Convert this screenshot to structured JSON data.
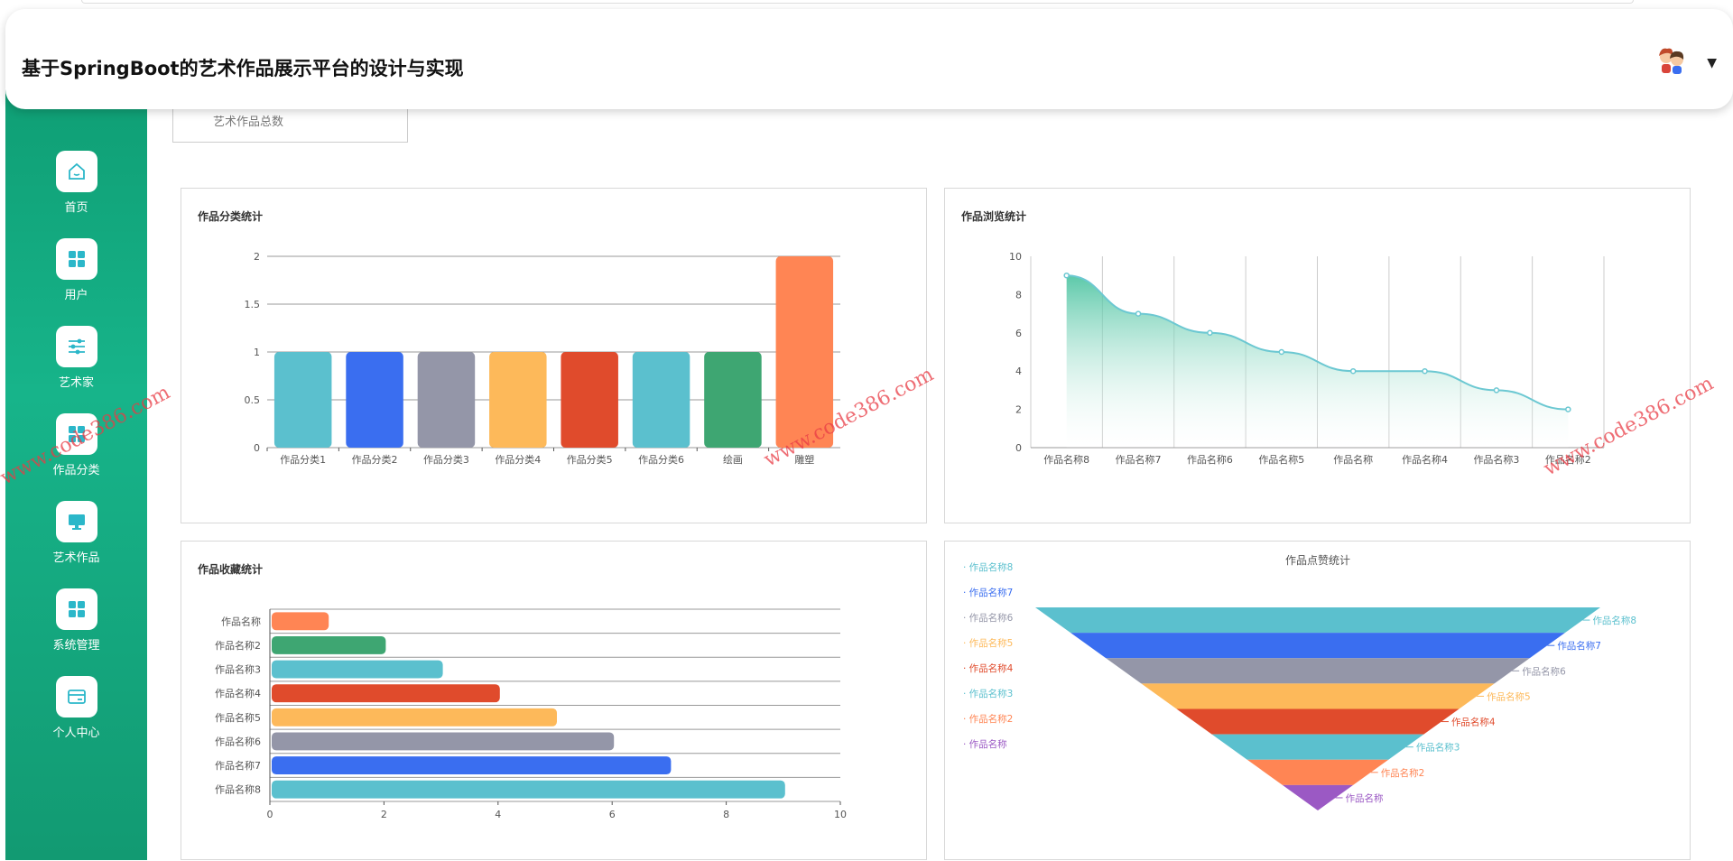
{
  "header": {
    "title": "基于SpringBoot的艺术作品展示平台的设计与实现",
    "avatar_icon": "user-avatar",
    "menu_icon": "caret-down-icon"
  },
  "sidebar": {
    "items": [
      {
        "label": "首页",
        "icon": "home-icon"
      },
      {
        "label": "用户",
        "icon": "grid-icon"
      },
      {
        "label": "艺术家",
        "icon": "sliders-icon"
      },
      {
        "label": "作品分类",
        "icon": "grid-icon"
      },
      {
        "label": "艺术作品",
        "icon": "monitor-icon"
      },
      {
        "label": "系统管理",
        "icon": "grid-icon"
      },
      {
        "label": "个人中心",
        "icon": "card-icon"
      }
    ]
  },
  "summary": {
    "label": "艺术作品总数"
  },
  "watermark": "www.code386.com",
  "charts": {
    "category": {
      "title": "作品分类统计"
    },
    "browse": {
      "title": "作品浏览统计"
    },
    "collect": {
      "title": "作品收藏统计"
    },
    "like": {
      "title": "作品点赞统计"
    }
  },
  "chart_data": [
    {
      "type": "bar",
      "title": "作品分类统计",
      "categories": [
        "作品分类1",
        "作品分类2",
        "作品分类3",
        "作品分类4",
        "作品分类5",
        "作品分类6",
        "绘画",
        "雕塑"
      ],
      "values": [
        1,
        1,
        1,
        1,
        1,
        1,
        1,
        2
      ],
      "ylim": [
        0,
        2
      ],
      "yticks": [
        "0",
        "0.5",
        "1",
        "1.5",
        "2"
      ],
      "colors": [
        "#5bc0ce",
        "#3a6ef0",
        "#9496a8",
        "#fdb95a",
        "#e04b2c",
        "#5bc0ce",
        "#3ea672",
        "#ff8554"
      ]
    },
    {
      "type": "area",
      "title": "作品浏览统计",
      "categories": [
        "作品名称8",
        "作品名称7",
        "作品名称6",
        "作品名称5",
        "作品名称",
        "作品名称4",
        "作品名称3",
        "作品名称2"
      ],
      "values": [
        9,
        7,
        6,
        5,
        4,
        4,
        3,
        2
      ],
      "ylim": [
        0,
        10
      ],
      "yticks": [
        "0",
        "2",
        "4",
        "6",
        "8",
        "10"
      ],
      "color": "#6cc8d2"
    },
    {
      "type": "bar",
      "orientation": "horizontal",
      "title": "作品收藏统计",
      "categories": [
        "作品名称",
        "作品名称2",
        "作品名称3",
        "作品名称4",
        "作品名称5",
        "作品名称6",
        "作品名称7",
        "作品名称8"
      ],
      "values": [
        1,
        2,
        3,
        4,
        5,
        6,
        7,
        9
      ],
      "xlim": [
        0,
        10
      ],
      "xticks": [
        "0",
        "2",
        "4",
        "6",
        "8",
        "10"
      ],
      "colors": [
        "#ff8554",
        "#3ea672",
        "#5bc0ce",
        "#e04b2c",
        "#fdb95a",
        "#9496a8",
        "#3a6ef0",
        "#5bc0ce"
      ]
    },
    {
      "type": "funnel",
      "title": "作品点赞统计",
      "categories": [
        "作品名称8",
        "作品名称7",
        "作品名称6",
        "作品名称5",
        "作品名称4",
        "作品名称3",
        "作品名称2",
        "作品名称"
      ],
      "values": [
        8,
        7,
        6,
        5,
        4,
        3,
        2,
        1
      ],
      "colors": [
        "#5bc0ce",
        "#3a6ef0",
        "#9496a8",
        "#fdb95a",
        "#e04b2c",
        "#5bc0ce",
        "#ff8554",
        "#9b59c4"
      ],
      "legend": "left"
    }
  ]
}
